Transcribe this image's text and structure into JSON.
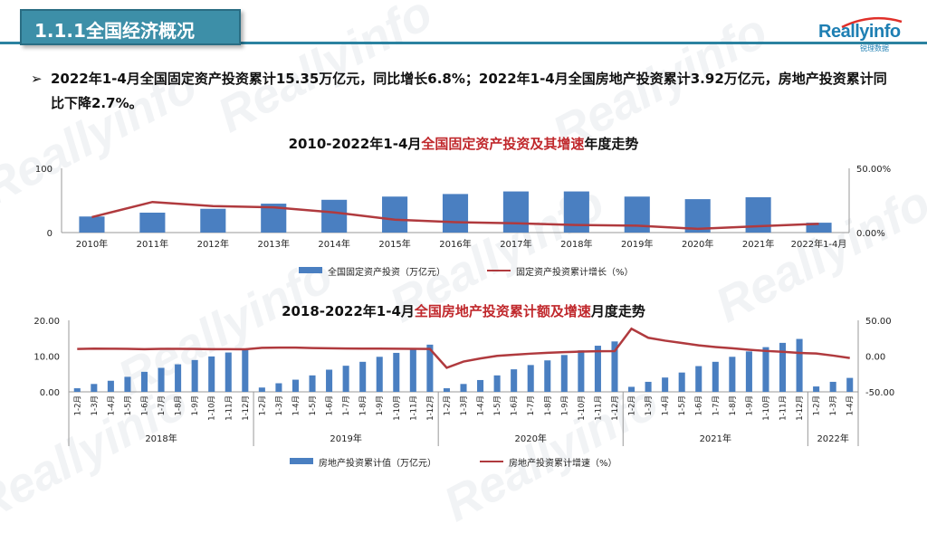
{
  "header": {
    "title": "1.1.1全国经济概况",
    "logo_main": "Reallyinfo",
    "logo_sub": "锐理数据"
  },
  "bullet": {
    "mark": "➢",
    "text": "2022年1-4月全国固定资产投资累计15.35万亿元，同比增长6.8%；2022年1-4月全国房地产投资累计3.92万亿元，房地产投资累计同比下降2.7%。"
  },
  "watermark": {
    "text": "Reallyinfo"
  },
  "colors": {
    "bar": "#4a7fc1",
    "line": "#b03a3e",
    "accent": "#c0282c",
    "header_bg": "#3d8fa8"
  },
  "chart_data": [
    {
      "type": "bar",
      "title_parts": [
        "2010-2022年1-4月",
        "全国固定资产投资及其增速",
        "年度走势"
      ],
      "categories": [
        "2010年",
        "2011年",
        "2012年",
        "2013年",
        "2014年",
        "2015年",
        "2016年",
        "2017年",
        "2018年",
        "2019年",
        "2020年",
        "2021年",
        "2022年1-4月"
      ],
      "series": [
        {
          "name": "全国固定资产投资（万亿元）",
          "type": "bar",
          "axis": "left",
          "values": [
            25,
            31,
            37,
            45,
            51,
            56,
            60,
            64,
            64,
            56,
            52,
            55,
            15.35
          ]
        },
        {
          "name": "固定资产投资累计增长（%）",
          "type": "line",
          "axis": "right",
          "values": [
            12.0,
            23.8,
            20.6,
            19.6,
            15.7,
            10.0,
            8.1,
            7.2,
            5.9,
            5.4,
            2.9,
            4.9,
            6.8
          ]
        }
      ],
      "ylim_left": [
        0,
        100
      ],
      "ylim_right": [
        0,
        50
      ],
      "left_ticks": [
        "0",
        "100"
      ],
      "right_ticks": [
        "0.00%",
        "50.00%"
      ],
      "legend": "bottom"
    },
    {
      "type": "bar",
      "title_parts": [
        "2018-2022年1-4月",
        "全国房地产投资累计额及增速",
        "月度走势"
      ],
      "categories": [
        "1-2月",
        "1-3月",
        "1-4月",
        "1-5月",
        "1-6月",
        "1-7月",
        "1-8月",
        "1-9月",
        "1-10月",
        "1-11月",
        "1-12月",
        "1-2月",
        "1-3月",
        "1-4月",
        "1-5月",
        "1-6月",
        "1-7月",
        "1-8月",
        "1-9月",
        "1-10月",
        "1-11月",
        "1-12月",
        "1-2月",
        "1-3月",
        "1-4月",
        "1-5月",
        "1-6月",
        "1-7月",
        "1-8月",
        "1-9月",
        "1-10月",
        "1-11月",
        "1-12月",
        "1-2月",
        "1-3月",
        "1-4月",
        "1-5月",
        "1-6月",
        "1-7月",
        "1-8月",
        "1-9月",
        "1-10月",
        "1-11月",
        "1-12月",
        "1-2月",
        "1-3月",
        "1-4月"
      ],
      "groups": [
        {
          "label": "2018年",
          "count": 11
        },
        {
          "label": "2019年",
          "count": 11
        },
        {
          "label": "2020年",
          "count": 11
        },
        {
          "label": "2021年",
          "count": 11
        },
        {
          "label": "2022年",
          "count": 3
        }
      ],
      "series": [
        {
          "name": "房地产投资累计值（万亿元）",
          "type": "bar",
          "axis": "left",
          "values": [
            1.0,
            2.2,
            3.1,
            4.2,
            5.6,
            6.7,
            7.7,
            8.9,
            9.9,
            11.0,
            12.0,
            1.2,
            2.4,
            3.4,
            4.6,
            6.2,
            7.3,
            8.4,
            9.8,
            10.9,
            12.1,
            13.2,
            1.0,
            2.2,
            3.3,
            4.6,
            6.3,
            7.5,
            8.8,
            10.3,
            11.6,
            12.9,
            14.1,
            1.4,
            2.8,
            4.0,
            5.4,
            7.2,
            8.4,
            9.8,
            11.3,
            12.5,
            13.7,
            14.8,
            1.5,
            2.8,
            3.9
          ]
        },
        {
          "name": "房地产投资累计增速（%）",
          "type": "line",
          "axis": "right",
          "values": [
            9.9,
            10.4,
            10.3,
            10.2,
            9.7,
            10.2,
            10.1,
            9.9,
            9.7,
            9.7,
            9.5,
            11.6,
            11.8,
            11.9,
            11.2,
            10.9,
            10.6,
            10.5,
            10.5,
            10.3,
            10.2,
            9.9,
            -16.3,
            -7.7,
            -3.3,
            0.3,
            1.9,
            3.4,
            4.6,
            5.6,
            6.3,
            6.8,
            7.0,
            38.3,
            25.6,
            21.6,
            18.3,
            15.0,
            12.7,
            10.9,
            8.8,
            7.2,
            6.0,
            4.4,
            3.7,
            0.7,
            -2.7
          ]
        }
      ],
      "ylim_left": [
        0,
        20
      ],
      "ylim_right": [
        -50,
        50
      ],
      "left_ticks": [
        "0.00",
        "10.00",
        "20.00"
      ],
      "right_ticks": [
        "-50.00",
        "0.00",
        "50.00"
      ],
      "legend": "bottom"
    }
  ]
}
